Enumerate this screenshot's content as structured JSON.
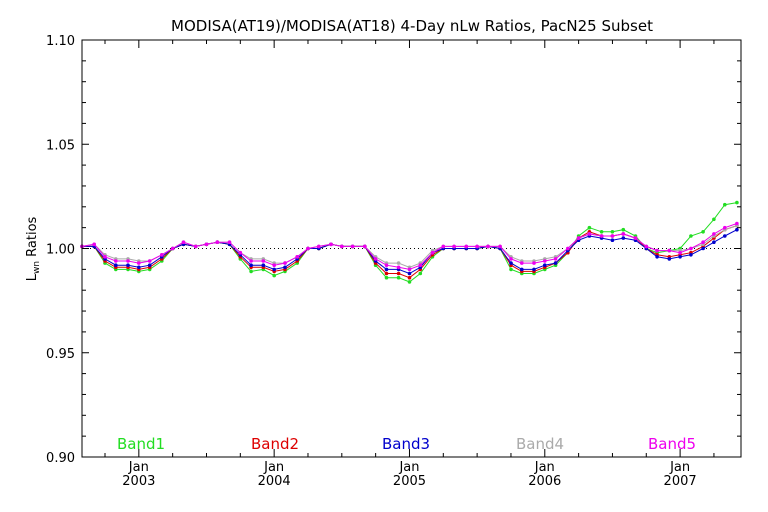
{
  "chart_data": {
    "type": "line",
    "title": "MODISA(AT19)/MODISA(AT18) 4-Day nLw Ratios, PacN25 Subset",
    "ylabel": "L_wn Ratios",
    "ylabel_main": "L",
    "ylabel_sub": "wn",
    "ylabel_rest": " Ratios",
    "xlabel": "",
    "xlim": [
      2002.58,
      2007.45
    ],
    "ylim": [
      0.9,
      1.1
    ],
    "yticks": [
      {
        "value": 0.9,
        "label": "0.90"
      },
      {
        "value": 0.95,
        "label": "0.95"
      },
      {
        "value": 1.0,
        "label": "1.00"
      },
      {
        "value": 1.05,
        "label": "1.05"
      },
      {
        "value": 1.1,
        "label": "1.10"
      }
    ],
    "xticks": [
      {
        "value": 2003.0,
        "month": "Jan",
        "year": "2003"
      },
      {
        "value": 2004.0,
        "month": "Jan",
        "year": "2004"
      },
      {
        "value": 2005.0,
        "month": "Jan",
        "year": "2005"
      },
      {
        "value": 2006.0,
        "month": "Jan",
        "year": "2006"
      },
      {
        "value": 2007.0,
        "month": "Jan",
        "year": "2007"
      }
    ],
    "reference_line": 1.0,
    "grid": false,
    "legend_position": "bottom",
    "x": [
      2002.58,
      2002.67,
      2002.75,
      2002.83,
      2002.92,
      2003.0,
      2003.08,
      2003.17,
      2003.25,
      2003.33,
      2003.42,
      2003.5,
      2003.58,
      2003.67,
      2003.75,
      2003.83,
      2003.92,
      2004.0,
      2004.08,
      2004.17,
      2004.25,
      2004.33,
      2004.42,
      2004.5,
      2004.58,
      2004.67,
      2004.75,
      2004.83,
      2004.92,
      2005.0,
      2005.08,
      2005.17,
      2005.25,
      2005.33,
      2005.42,
      2005.5,
      2005.58,
      2005.67,
      2005.75,
      2005.83,
      2005.92,
      2006.0,
      2006.08,
      2006.17,
      2006.25,
      2006.33,
      2006.42,
      2006.5,
      2006.58,
      2006.67,
      2006.75,
      2006.83,
      2006.92,
      2007.0,
      2007.08,
      2007.17,
      2007.25,
      2007.33,
      2007.42
    ],
    "series": [
      {
        "name": "Band1",
        "color": "#22dd22",
        "values": [
          1.001,
          1.001,
          0.993,
          0.99,
          0.99,
          0.989,
          0.99,
          0.994,
          1.0,
          1.002,
          1.001,
          1.002,
          1.003,
          1.002,
          0.995,
          0.989,
          0.99,
          0.987,
          0.989,
          0.993,
          1.0,
          1.0,
          1.002,
          1.001,
          1.001,
          1.001,
          0.992,
          0.986,
          0.986,
          0.984,
          0.988,
          0.996,
          1.0,
          1.0,
          1.0,
          1.0,
          1.001,
          1.0,
          0.99,
          0.988,
          0.988,
          0.99,
          0.992,
          0.998,
          1.006,
          1.01,
          1.008,
          1.008,
          1.009,
          1.006,
          1.0,
          0.998,
          0.999,
          1.0,
          1.006,
          1.008,
          1.014,
          1.021,
          1.022
        ]
      },
      {
        "name": "Band2",
        "color": "#dd0000",
        "values": [
          1.001,
          1.001,
          0.994,
          0.991,
          0.991,
          0.99,
          0.991,
          0.995,
          1.0,
          1.002,
          1.001,
          1.002,
          1.003,
          1.002,
          0.996,
          0.991,
          0.991,
          0.989,
          0.99,
          0.994,
          1.0,
          1.0,
          1.002,
          1.001,
          1.001,
          1.001,
          0.993,
          0.988,
          0.988,
          0.986,
          0.99,
          0.997,
          1.0,
          1.0,
          1.0,
          1.0,
          1.001,
          1.0,
          0.992,
          0.989,
          0.989,
          0.991,
          0.993,
          0.998,
          1.005,
          1.008,
          1.006,
          1.006,
          1.007,
          1.005,
          1.0,
          0.997,
          0.996,
          0.997,
          0.998,
          1.001,
          1.005,
          1.009,
          1.011
        ]
      },
      {
        "name": "Band3",
        "color": "#0000cc",
        "values": [
          1.001,
          1.001,
          0.995,
          0.992,
          0.992,
          0.991,
          0.992,
          0.996,
          1.0,
          1.002,
          1.001,
          1.002,
          1.003,
          1.002,
          0.997,
          0.992,
          0.992,
          0.99,
          0.991,
          0.995,
          1.0,
          1.0,
          1.002,
          1.001,
          1.001,
          1.001,
          0.994,
          0.99,
          0.99,
          0.988,
          0.991,
          0.998,
          1.0,
          1.0,
          1.0,
          1.0,
          1.001,
          1.0,
          0.993,
          0.99,
          0.99,
          0.992,
          0.993,
          0.999,
          1.004,
          1.006,
          1.005,
          1.004,
          1.005,
          1.004,
          1.0,
          0.996,
          0.995,
          0.996,
          0.997,
          1.0,
          1.003,
          1.006,
          1.009
        ]
      },
      {
        "name": "Band4",
        "color": "#aaaaaa",
        "values": [
          1.001,
          1.002,
          0.997,
          0.995,
          0.995,
          0.994,
          0.994,
          0.997,
          1.0,
          1.003,
          1.001,
          1.002,
          1.003,
          1.003,
          0.998,
          0.995,
          0.995,
          0.993,
          0.993,
          0.996,
          1.0,
          1.001,
          1.002,
          1.001,
          1.001,
          1.001,
          0.996,
          0.993,
          0.993,
          0.991,
          0.993,
          0.999,
          1.001,
          1.001,
          1.001,
          1.001,
          1.001,
          1.001,
          0.996,
          0.994,
          0.994,
          0.995,
          0.996,
          1.0,
          1.005,
          1.007,
          1.006,
          1.006,
          1.007,
          1.005,
          1.001,
          0.999,
          0.999,
          0.999,
          1.0,
          1.002,
          1.006,
          1.009,
          1.011
        ]
      },
      {
        "name": "Band5",
        "color": "#ee00ee",
        "values": [
          1.001,
          1.002,
          0.996,
          0.994,
          0.994,
          0.993,
          0.994,
          0.997,
          1.0,
          1.003,
          1.001,
          1.002,
          1.003,
          1.003,
          0.998,
          0.994,
          0.994,
          0.992,
          0.993,
          0.996,
          1.0,
          1.001,
          1.002,
          1.001,
          1.001,
          1.001,
          0.995,
          0.992,
          0.991,
          0.99,
          0.992,
          0.998,
          1.001,
          1.001,
          1.001,
          1.001,
          1.001,
          1.001,
          0.995,
          0.993,
          0.993,
          0.994,
          0.995,
          1.0,
          1.005,
          1.007,
          1.006,
          1.006,
          1.007,
          1.005,
          1.001,
          0.999,
          0.999,
          0.998,
          1.0,
          1.003,
          1.007,
          1.01,
          1.012
        ]
      }
    ]
  }
}
